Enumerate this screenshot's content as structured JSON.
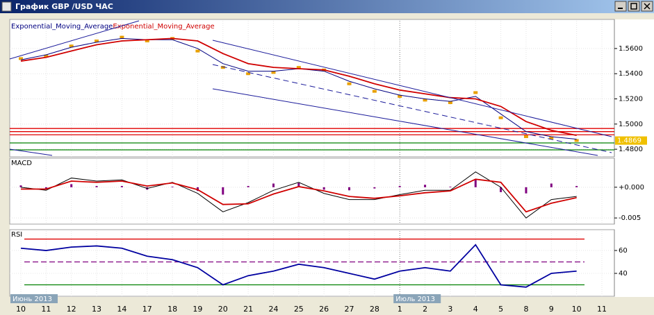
{
  "window": {
    "title": "График GBP /USD ЧАС"
  },
  "chart_data": [
    {
      "type": "line",
      "categories": [
        "10",
        "11",
        "12",
        "13",
        "14",
        "17",
        "18",
        "19",
        "20",
        "21",
        "24",
        "25",
        "26",
        "27",
        "28",
        "1",
        "2",
        "3",
        "4",
        "5",
        "8",
        "9",
        "10",
        "11"
      ],
      "period_labels": [
        "Июнь 2013",
        "Июль 2013"
      ],
      "values": [
        1.552,
        1.554,
        1.562,
        1.566,
        1.569,
        1.566,
        1.568,
        1.558,
        1.545,
        1.54,
        1.541,
        1.545,
        1.543,
        1.532,
        1.526,
        1.522,
        1.519,
        1.517,
        1.525,
        1.505,
        1.49,
        1.489,
        1.487,
        null
      ],
      "color": "#e8a000",
      "series": [
        {
          "name": "Exponential_Moving_Average",
          "color": "#000080",
          "values": [
            1.551,
            1.555,
            1.561,
            1.565,
            1.568,
            1.567,
            1.567,
            1.56,
            1.548,
            1.542,
            1.542,
            1.544,
            1.542,
            1.534,
            1.528,
            1.523,
            1.52,
            1.518,
            1.522,
            1.508,
            1.494,
            1.49,
            1.488,
            null
          ]
        },
        {
          "name": "Exponential_Moving_Average",
          "color": "#d00000",
          "values": [
            1.55,
            1.553,
            1.558,
            1.563,
            1.566,
            1.567,
            1.568,
            1.566,
            1.556,
            1.548,
            1.545,
            1.544,
            1.543,
            1.538,
            1.532,
            1.527,
            1.524,
            1.521,
            1.52,
            1.514,
            1.502,
            1.495,
            1.491,
            null
          ]
        }
      ],
      "hlines": [
        {
          "value": 1.4965,
          "color": "#e00000"
        },
        {
          "value": 1.494,
          "color": "#e00000"
        },
        {
          "value": 1.4915,
          "color": "#e00000"
        },
        {
          "value": 1.485,
          "color": "#008000"
        },
        {
          "value": 1.4795,
          "color": "#008000"
        }
      ],
      "last_price": 1.4869,
      "ylim": [
        1.474,
        1.582
      ],
      "yticks": [
        {
          "value": 1.48,
          "label": "1.4800"
        },
        {
          "value": 1.5,
          "label": "1.5000"
        },
        {
          "value": 1.52,
          "label": "1.5200"
        },
        {
          "value": 1.54,
          "label": "1.5400"
        },
        {
          "value": 1.56,
          "label": "1.5600"
        }
      ],
      "grid": true
    },
    {
      "type": "line",
      "title": "MACD",
      "histogram": [
        0.0003,
        -0.0002,
        0.0005,
        0.0002,
        0.0002,
        -0.0004,
        0.0001,
        -0.0006,
        -0.0012,
        0.0002,
        0.0006,
        0.0007,
        -0.0004,
        -0.0005,
        -0.0002,
        0.0002,
        0.0004,
        0.0001,
        0.0012,
        -0.0008,
        -0.001,
        0.0006,
        0.0002,
        null
      ],
      "histogram_color": "#800080",
      "series": [
        {
          "color": "#000000",
          "values": [
            0.0,
            -0.0005,
            0.0015,
            0.001,
            0.0012,
            -0.0002,
            0.0008,
            -0.001,
            -0.004,
            -0.0025,
            -0.0005,
            0.0008,
            -0.001,
            -0.002,
            -0.002,
            -0.0012,
            -0.0005,
            -0.0005,
            0.0025,
            0.0,
            -0.005,
            -0.002,
            -0.0015,
            null
          ]
        },
        {
          "color": "#d00000",
          "values": [
            -0.0003,
            -0.0003,
            0.001,
            0.0008,
            0.001,
            0.0002,
            0.0007,
            -0.0004,
            -0.0028,
            -0.0027,
            -0.0011,
            0.0001,
            -0.0006,
            -0.0015,
            -0.0018,
            -0.0014,
            -0.0009,
            -0.0006,
            0.0013,
            0.0008,
            -0.004,
            -0.0026,
            -0.0017,
            null
          ]
        }
      ],
      "ylim": [
        -0.006,
        0.0045
      ],
      "yticks": [
        {
          "value": -0.005,
          "label": "-0.005"
        },
        {
          "value": 0,
          "label": "+0.000"
        }
      ],
      "grid": true
    },
    {
      "type": "line",
      "title": "RSI",
      "series": [
        {
          "color": "#0000a0",
          "values": [
            62,
            60,
            63,
            64,
            62,
            55,
            52,
            45,
            30,
            38,
            42,
            48,
            45,
            40,
            35,
            42,
            45,
            42,
            65,
            30,
            28,
            40,
            42,
            null
          ]
        }
      ],
      "hlines": [
        {
          "value": 70,
          "color": "#e00000"
        },
        {
          "value": 50,
          "color": "#800080",
          "dashed": true
        },
        {
          "value": 30,
          "color": "#008000"
        }
      ],
      "ylim": [
        20,
        77
      ],
      "yticks": [
        40,
        60
      ],
      "grid": true
    }
  ]
}
